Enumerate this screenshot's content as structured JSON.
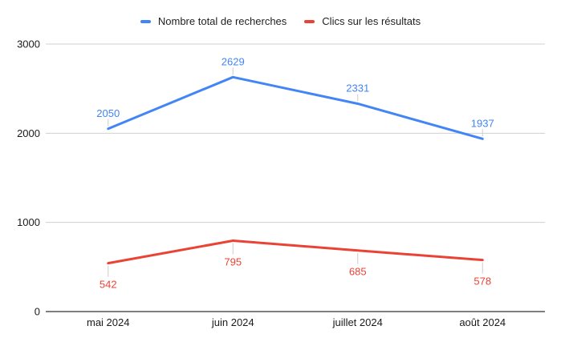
{
  "chart_data": {
    "type": "line",
    "categories": [
      "mai 2024",
      "juin 2024",
      "juillet 2024",
      "août 2024"
    ],
    "series": [
      {
        "name": "Nombre total de recherches",
        "color": "#4285F4",
        "values": [
          2050,
          2629,
          2331,
          1937
        ],
        "label_position": "above"
      },
      {
        "name": "Clics sur les résultats",
        "color": "#EA4335",
        "values": [
          542,
          795,
          685,
          578
        ],
        "label_position": "below"
      }
    ],
    "title": "",
    "xlabel": "",
    "ylabel": "",
    "ylim": [
      0,
      3000
    ],
    "yticks": [
      0,
      1000,
      2000,
      3000
    ],
    "grid": true,
    "legend_position": "top",
    "colors": {
      "background": "#ffffff",
      "axis_line": "#333333",
      "gridline": "#d0d0d0",
      "leader_line": "#cccccc",
      "axis_label": "#1a1a1a"
    }
  }
}
